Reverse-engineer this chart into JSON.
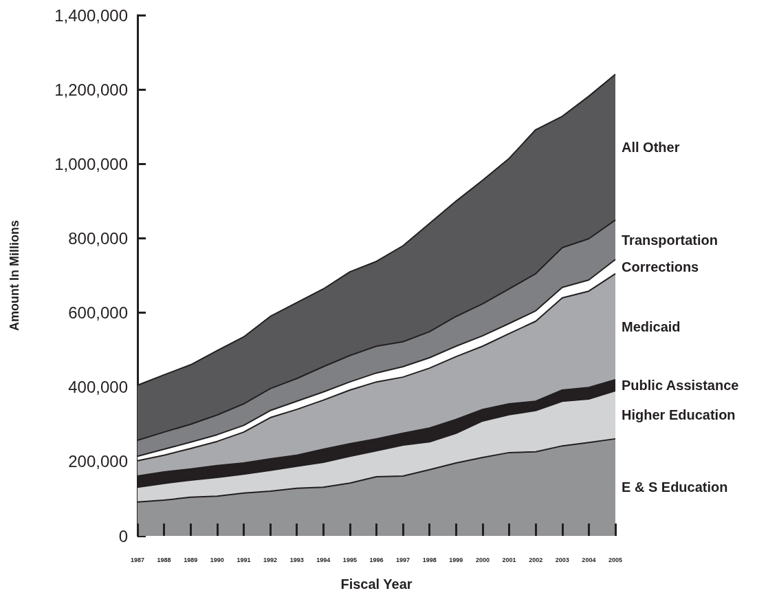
{
  "chart_data": {
    "type": "area",
    "stacked": true,
    "xlabel": "Fiscal Year",
    "ylabel": "Amount In Millions",
    "categories": [
      "1987",
      "1988",
      "1989",
      "1990",
      "1991",
      "1992",
      "1993",
      "1994",
      "1995",
      "1996",
      "1997",
      "1998",
      "1999",
      "2000",
      "2001",
      "2002",
      "2003",
      "2004",
      "2005"
    ],
    "ylim": [
      0,
      1400000
    ],
    "yticks": [
      0,
      {
        "value": 200000,
        "label": "200,000"
      },
      {
        "value": 400000,
        "label": "400,000"
      },
      {
        "value": 600000,
        "label": "600,000"
      },
      {
        "value": 800000,
        "label": "800,000"
      },
      {
        "value": 1000000,
        "label": "1,000,000"
      },
      {
        "value": 1200000,
        "label": "1,200,000"
      },
      {
        "value": 1400000,
        "label": "1,400,000"
      }
    ],
    "grid": false,
    "legend": false,
    "series": [
      {
        "name": "E & S Education",
        "color": "#939496",
        "values": [
          91000,
          96000,
          104000,
          107000,
          115000,
          120000,
          128000,
          131000,
          142000,
          159000,
          161000,
          178000,
          196000,
          211000,
          224000,
          226000,
          242000,
          251000,
          261000
        ]
      },
      {
        "name": "Higher Education",
        "color": "#d2d3d5",
        "values": [
          40000,
          45000,
          46000,
          50000,
          51000,
          56000,
          59000,
          67000,
          72000,
          70000,
          83000,
          75000,
          80000,
          98000,
          102000,
          111000,
          120000,
          117000,
          129000
        ]
      },
      {
        "name": "Public Assistance",
        "color": "#231f20",
        "values": [
          30000,
          31000,
          30000,
          32000,
          30000,
          31000,
          30000,
          35000,
          34000,
          32000,
          32000,
          37000,
          37000,
          31000,
          29000,
          25000,
          30000,
          31000,
          30000
        ]
      },
      {
        "name": "Medicaid",
        "color": "#a8a9ad",
        "values": [
          41000,
          45000,
          55000,
          65000,
          83000,
          111000,
          123000,
          132000,
          144000,
          153000,
          151000,
          161000,
          169000,
          170000,
          189000,
          215000,
          248000,
          259000,
          285000
        ]
      },
      {
        "name": "Corrections",
        "color": "#ffffff",
        "values": [
          12000,
          16000,
          17000,
          18000,
          18000,
          19000,
          22000,
          22000,
          22000,
          24000,
          28000,
          28000,
          28000,
          28000,
          27000,
          28000,
          28000,
          30000,
          38000
        ]
      },
      {
        "name": "Transportation",
        "color": "#7f8083",
        "values": [
          43000,
          46000,
          48000,
          53000,
          58000,
          59000,
          61000,
          68000,
          71000,
          72000,
          67000,
          70000,
          80000,
          86000,
          93000,
          100000,
          107000,
          111000,
          106000
        ]
      },
      {
        "name": "All Other",
        "color": "#58585a",
        "values": [
          148000,
          154000,
          160000,
          173000,
          180000,
          194000,
          204000,
          209000,
          225000,
          228000,
          258000,
          291000,
          310000,
          332000,
          351000,
          387000,
          353000,
          383000,
          392000
        ]
      }
    ]
  }
}
